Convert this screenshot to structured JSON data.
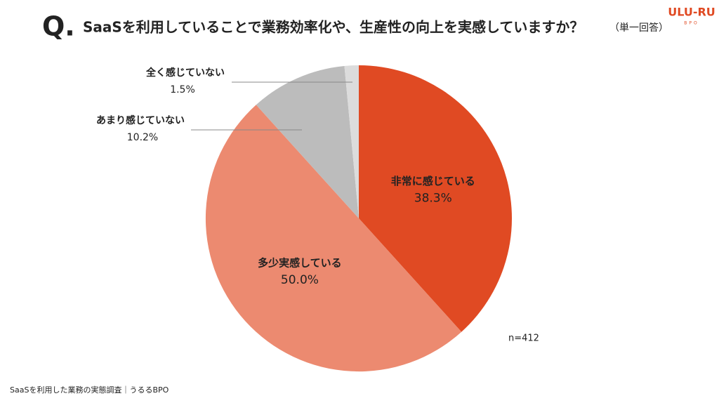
{
  "chart_data": {
    "type": "pie",
    "question_marker": "Q.",
    "title": "SaaSを利用していることで業務効率化や、生産性の向上を実感していますか？",
    "subtitle": "（単一回答）",
    "logo": "ULU-RU",
    "logo_sub": "BPO",
    "categories": [
      "非常に感じている",
      "多少実感している",
      "あまり感じていない",
      "全く感じていない"
    ],
    "values": [
      38.3,
      50,
      10.2,
      1.5
    ],
    "value_labels": [
      "38.3%",
      "50.0%",
      "10.2%",
      "1.5%"
    ],
    "colors": [
      "#e04a23",
      "#ec8a70",
      "#bcbcbc",
      "#dcdcdc"
    ],
    "note": "n=412",
    "source": "SaaSを利用した業務の実態調査｜うるるBPO"
  }
}
